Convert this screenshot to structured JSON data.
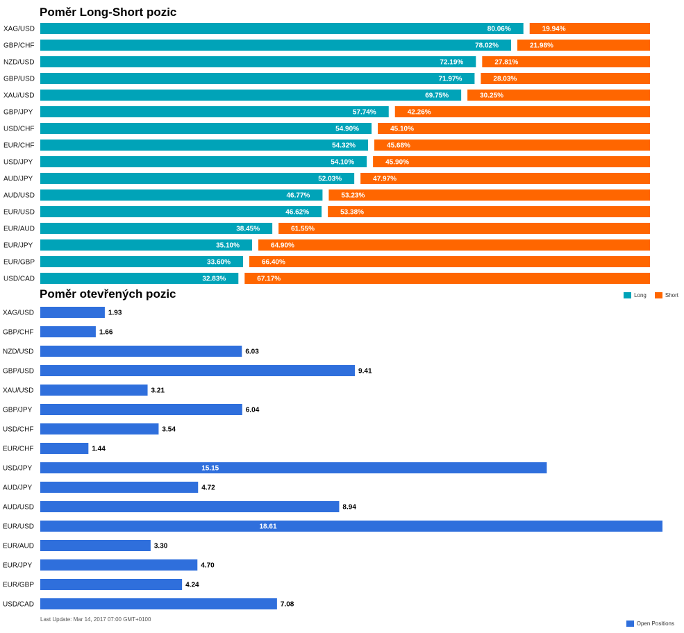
{
  "titles": {
    "long_short": "Poměr Long-Short pozic",
    "open_positions": "Poměr otevřených pozic"
  },
  "legend": {
    "long": "Long",
    "short": "Short",
    "open_positions": "Open Positions"
  },
  "last_update": "Last Update: Mar 14, 2017 07:00 GMT+0100",
  "colors": {
    "long": "#00a3b8",
    "short": "#ff6600",
    "open_positions": "#2f6fdc"
  },
  "chart_data": [
    {
      "type": "bar",
      "orientation": "horizontal",
      "stacked": "percent",
      "title": "Poměr Long-Short pozic",
      "categories": [
        "XAG/USD",
        "GBP/CHF",
        "NZD/USD",
        "GBP/USD",
        "XAU/USD",
        "GBP/JPY",
        "USD/CHF",
        "EUR/CHF",
        "USD/JPY",
        "AUD/JPY",
        "AUD/USD",
        "EUR/USD",
        "EUR/AUD",
        "EUR/JPY",
        "EUR/GBP",
        "USD/CAD"
      ],
      "series": [
        {
          "name": "Long",
          "values": [
            80.06,
            78.02,
            72.19,
            71.97,
            69.75,
            57.74,
            54.9,
            54.32,
            54.1,
            52.03,
            46.77,
            46.62,
            38.45,
            35.1,
            33.6,
            32.83
          ],
          "labels": [
            "80.06%",
            "78.02%",
            "72.19%",
            "71.97%",
            "69.75%",
            "57.74%",
            "54.90%",
            "54.32%",
            "54.10%",
            "52.03%",
            "46.77%",
            "46.62%",
            "38.45%",
            "35.10%",
            "33.60%",
            "32.83%"
          ]
        },
        {
          "name": "Short",
          "values": [
            19.94,
            21.98,
            27.81,
            28.03,
            30.25,
            42.26,
            45.1,
            45.68,
            45.9,
            47.97,
            53.23,
            53.38,
            61.55,
            64.9,
            66.4,
            67.17
          ],
          "labels": [
            "19.94%",
            "21.98%",
            "27.81%",
            "28.03%",
            "30.25%",
            "42.26%",
            "45.10%",
            "45.68%",
            "45.90%",
            "47.97%",
            "53.23%",
            "53.38%",
            "61.55%",
            "64.90%",
            "66.40%",
            "67.17%"
          ]
        }
      ],
      "legend_position": "bottom-right"
    },
    {
      "type": "bar",
      "orientation": "horizontal",
      "title": "Poměr otevřených pozic",
      "categories": [
        "XAG/USD",
        "GBP/CHF",
        "NZD/USD",
        "GBP/USD",
        "XAU/USD",
        "GBP/JPY",
        "USD/CHF",
        "EUR/CHF",
        "USD/JPY",
        "AUD/JPY",
        "AUD/USD",
        "EUR/USD",
        "EUR/AUD",
        "EUR/JPY",
        "EUR/GBP",
        "USD/CAD"
      ],
      "series": [
        {
          "name": "Open Positions",
          "values": [
            1.93,
            1.66,
            6.03,
            9.41,
            3.21,
            6.04,
            3.54,
            1.44,
            15.15,
            4.72,
            8.94,
            18.61,
            3.3,
            4.7,
            4.24,
            7.08
          ],
          "labels": [
            "1.93",
            "1.66",
            "6.03",
            "9.41",
            "3.21",
            "6.04",
            "3.54",
            "1.44",
            "15.15",
            "4.72",
            "8.94",
            "18.61",
            "3.30",
            "4.70",
            "4.24",
            "7.08"
          ]
        }
      ],
      "xlim": [
        0,
        18.61
      ],
      "legend_position": "bottom-right"
    }
  ]
}
